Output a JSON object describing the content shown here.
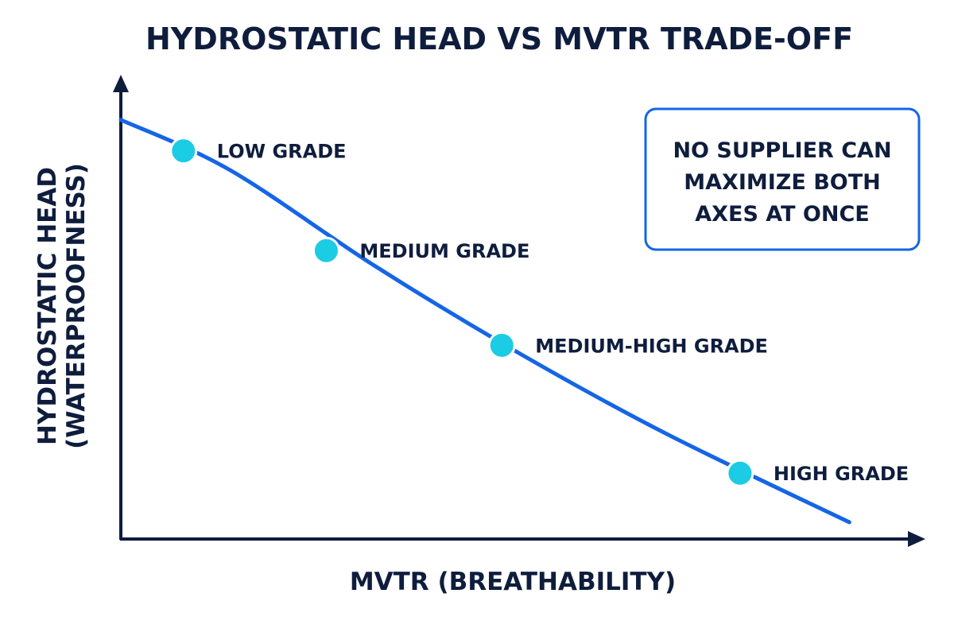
{
  "chart_data": {
    "type": "line",
    "title": "HYDROSTATIC HEAD VS MVTR TRADE-OFF",
    "xlabel": "MVTR (BREATHABILITY)",
    "ylabel_lines": [
      "HYDROSTATIC HEAD",
      "(WATERPROOFNESS)"
    ],
    "axis_ticks": "none",
    "grid": false,
    "series": [
      {
        "curve": {
          "x": [
            0.0,
            0.15,
            0.35,
            0.55,
            0.75,
            1.0
          ],
          "y": [
            1.0,
            0.88,
            0.65,
            0.44,
            0.25,
            0.04
          ]
        },
        "points": [
          {
            "label": "LOW GRADE",
            "x": 0.086,
            "y": 0.926
          },
          {
            "label": "MEDIUM GRADE",
            "x": 0.282,
            "y": 0.688
          },
          {
            "label": "MEDIUM-HIGH GRADE",
            "x": 0.523,
            "y": 0.462
          },
          {
            "label": "HIGH GRADE",
            "x": 0.85,
            "y": 0.157
          }
        ]
      }
    ],
    "xlim": [
      0,
      1.1
    ],
    "ylim": [
      0,
      1.1
    ],
    "annotation": {
      "lines": [
        "NO SUPPLIER CAN",
        "MAXIMIZE BOTH",
        "AXES AT ONCE"
      ],
      "placement": "top-right"
    },
    "colors": {
      "curve": "#1565e6",
      "points": "#1ccbe4",
      "axis": "#0f1d3d",
      "text": "#0f1d3d",
      "callout_border": "#1565e6"
    }
  }
}
